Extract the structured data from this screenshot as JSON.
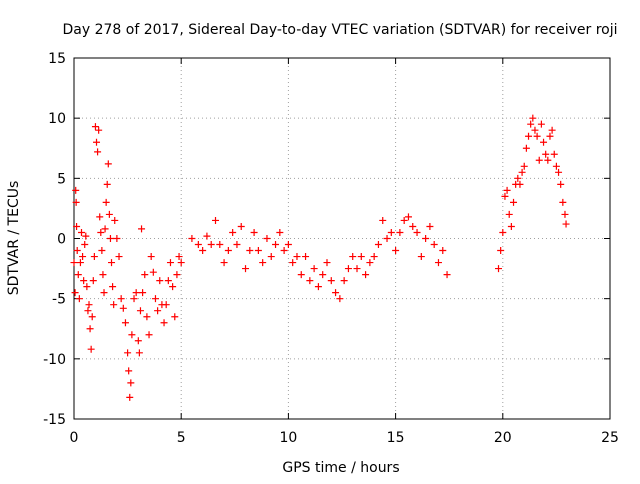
{
  "chart_data": {
    "type": "scatter",
    "title": "Day 278 of 2017, Sidereal Day-to-day VTEC variation (SDTVAR) for receiver roji",
    "xlabel": "GPS time / hours",
    "ylabel": "SDTVAR / TECUs",
    "xlim": [
      0,
      25
    ],
    "ylim": [
      -15,
      15
    ],
    "x_ticks": [
      0,
      5,
      10,
      15,
      20,
      25
    ],
    "y_ticks": [
      -15,
      -10,
      -5,
      0,
      5,
      10,
      15
    ],
    "x_tick_labels": [
      "0",
      "5",
      "10",
      "15",
      "20",
      "25"
    ],
    "y_tick_labels": [
      "-15",
      "-10",
      "-5",
      "0",
      "5",
      "10",
      "15"
    ],
    "grid": true,
    "marker": "+",
    "series": [
      {
        "name": "SDTVAR",
        "color": "#ff0000",
        "points": [
          [
            0.0,
            -2.0
          ],
          [
            0.05,
            -4.5
          ],
          [
            0.08,
            4.0
          ],
          [
            0.1,
            3.0
          ],
          [
            0.12,
            1.0
          ],
          [
            0.15,
            -1.0
          ],
          [
            0.2,
            -3.0
          ],
          [
            0.25,
            -5.0
          ],
          [
            0.3,
            -2.0
          ],
          [
            0.35,
            0.5
          ],
          [
            0.4,
            -1.5
          ],
          [
            0.45,
            -3.5
          ],
          [
            0.5,
            -0.5
          ],
          [
            0.55,
            0.2
          ],
          [
            0.6,
            -4.0
          ],
          [
            0.65,
            -6.0
          ],
          [
            0.7,
            -5.5
          ],
          [
            0.75,
            -7.5
          ],
          [
            0.8,
            -9.2
          ],
          [
            0.85,
            -6.5
          ],
          [
            0.9,
            -3.5
          ],
          [
            0.95,
            -1.5
          ],
          [
            1.0,
            9.3
          ],
          [
            1.05,
            8.0
          ],
          [
            1.1,
            7.2
          ],
          [
            1.15,
            9.0
          ],
          [
            1.2,
            1.8
          ],
          [
            1.25,
            0.5
          ],
          [
            1.3,
            -1.0
          ],
          [
            1.35,
            -3.0
          ],
          [
            1.4,
            -4.5
          ],
          [
            1.45,
            0.8
          ],
          [
            1.5,
            3.0
          ],
          [
            1.55,
            4.5
          ],
          [
            1.6,
            6.2
          ],
          [
            1.65,
            2.0
          ],
          [
            1.7,
            0.0
          ],
          [
            1.75,
            -2.0
          ],
          [
            1.8,
            -4.0
          ],
          [
            1.85,
            -5.5
          ],
          [
            1.9,
            1.5
          ],
          [
            2.0,
            0.0
          ],
          [
            2.1,
            -1.5
          ],
          [
            2.2,
            -5.0
          ],
          [
            2.3,
            -5.8
          ],
          [
            2.4,
            -7.0
          ],
          [
            2.5,
            -9.5
          ],
          [
            2.55,
            -11.0
          ],
          [
            2.6,
            -13.2
          ],
          [
            2.65,
            -12.0
          ],
          [
            2.7,
            -8.0
          ],
          [
            2.8,
            -5.0
          ],
          [
            2.9,
            -4.5
          ],
          [
            3.0,
            -8.5
          ],
          [
            3.05,
            -9.5
          ],
          [
            3.1,
            -6.0
          ],
          [
            3.15,
            0.8
          ],
          [
            3.2,
            -4.5
          ],
          [
            3.3,
            -3.0
          ],
          [
            3.4,
            -6.5
          ],
          [
            3.5,
            -8.0
          ],
          [
            3.6,
            -1.5
          ],
          [
            3.7,
            -2.8
          ],
          [
            3.8,
            -5.0
          ],
          [
            3.9,
            -6.0
          ],
          [
            4.0,
            -3.5
          ],
          [
            4.1,
            -5.5
          ],
          [
            4.2,
            -7.0
          ],
          [
            4.3,
            -5.5
          ],
          [
            4.4,
            -3.5
          ],
          [
            4.5,
            -2.0
          ],
          [
            4.6,
            -4.0
          ],
          [
            4.7,
            -6.5
          ],
          [
            4.8,
            -3.0
          ],
          [
            4.9,
            -1.5
          ],
          [
            5.0,
            -2.0
          ],
          [
            5.5,
            0.0
          ],
          [
            5.8,
            -0.5
          ],
          [
            6.0,
            -1.0
          ],
          [
            6.2,
            0.2
          ],
          [
            6.4,
            -0.5
          ],
          [
            6.6,
            1.5
          ],
          [
            6.8,
            -0.5
          ],
          [
            7.0,
            -2.0
          ],
          [
            7.2,
            -1.0
          ],
          [
            7.4,
            0.5
          ],
          [
            7.6,
            -0.5
          ],
          [
            7.8,
            1.0
          ],
          [
            8.0,
            -2.5
          ],
          [
            8.2,
            -1.0
          ],
          [
            8.4,
            0.5
          ],
          [
            8.6,
            -1.0
          ],
          [
            8.8,
            -2.0
          ],
          [
            9.0,
            0.0
          ],
          [
            9.2,
            -1.5
          ],
          [
            9.4,
            -0.5
          ],
          [
            9.6,
            0.5
          ],
          [
            9.8,
            -1.0
          ],
          [
            10.0,
            -0.5
          ],
          [
            10.2,
            -2.0
          ],
          [
            10.4,
            -1.5
          ],
          [
            10.6,
            -3.0
          ],
          [
            10.8,
            -1.5
          ],
          [
            11.0,
            -3.5
          ],
          [
            11.2,
            -2.5
          ],
          [
            11.4,
            -4.0
          ],
          [
            11.6,
            -3.0
          ],
          [
            11.8,
            -2.0
          ],
          [
            12.0,
            -3.5
          ],
          [
            12.2,
            -4.5
          ],
          [
            12.4,
            -5.0
          ],
          [
            12.6,
            -3.5
          ],
          [
            12.8,
            -2.5
          ],
          [
            13.0,
            -1.5
          ],
          [
            13.2,
            -2.5
          ],
          [
            13.4,
            -1.5
          ],
          [
            13.6,
            -3.0
          ],
          [
            13.8,
            -2.0
          ],
          [
            14.0,
            -1.5
          ],
          [
            14.2,
            -0.5
          ],
          [
            14.4,
            1.5
          ],
          [
            14.6,
            0.0
          ],
          [
            14.8,
            0.5
          ],
          [
            15.0,
            -1.0
          ],
          [
            15.2,
            0.5
          ],
          [
            15.4,
            1.5
          ],
          [
            15.6,
            1.8
          ],
          [
            15.8,
            1.0
          ],
          [
            16.0,
            0.5
          ],
          [
            16.2,
            -1.5
          ],
          [
            16.4,
            0.0
          ],
          [
            16.6,
            1.0
          ],
          [
            16.8,
            -0.5
          ],
          [
            17.0,
            -2.0
          ],
          [
            17.2,
            -1.0
          ],
          [
            17.4,
            -3.0
          ],
          [
            19.8,
            -2.5
          ],
          [
            19.9,
            -1.0
          ],
          [
            20.0,
            0.5
          ],
          [
            20.1,
            3.5
          ],
          [
            20.2,
            4.0
          ],
          [
            20.3,
            2.0
          ],
          [
            20.4,
            1.0
          ],
          [
            20.5,
            3.0
          ],
          [
            20.6,
            4.5
          ],
          [
            20.7,
            5.0
          ],
          [
            20.8,
            4.5
          ],
          [
            20.9,
            5.5
          ],
          [
            21.0,
            6.0
          ],
          [
            21.1,
            7.5
          ],
          [
            21.2,
            8.5
          ],
          [
            21.3,
            9.5
          ],
          [
            21.4,
            10.0
          ],
          [
            21.5,
            9.0
          ],
          [
            21.6,
            8.5
          ],
          [
            21.7,
            6.5
          ],
          [
            21.8,
            9.5
          ],
          [
            21.9,
            8.0
          ],
          [
            22.0,
            7.0
          ],
          [
            22.1,
            6.5
          ],
          [
            22.2,
            8.5
          ],
          [
            22.3,
            9.0
          ],
          [
            22.4,
            7.0
          ],
          [
            22.5,
            6.0
          ],
          [
            22.6,
            5.5
          ],
          [
            22.7,
            4.5
          ],
          [
            22.8,
            3.0
          ],
          [
            22.9,
            2.0
          ],
          [
            22.95,
            1.2
          ]
        ]
      }
    ]
  }
}
